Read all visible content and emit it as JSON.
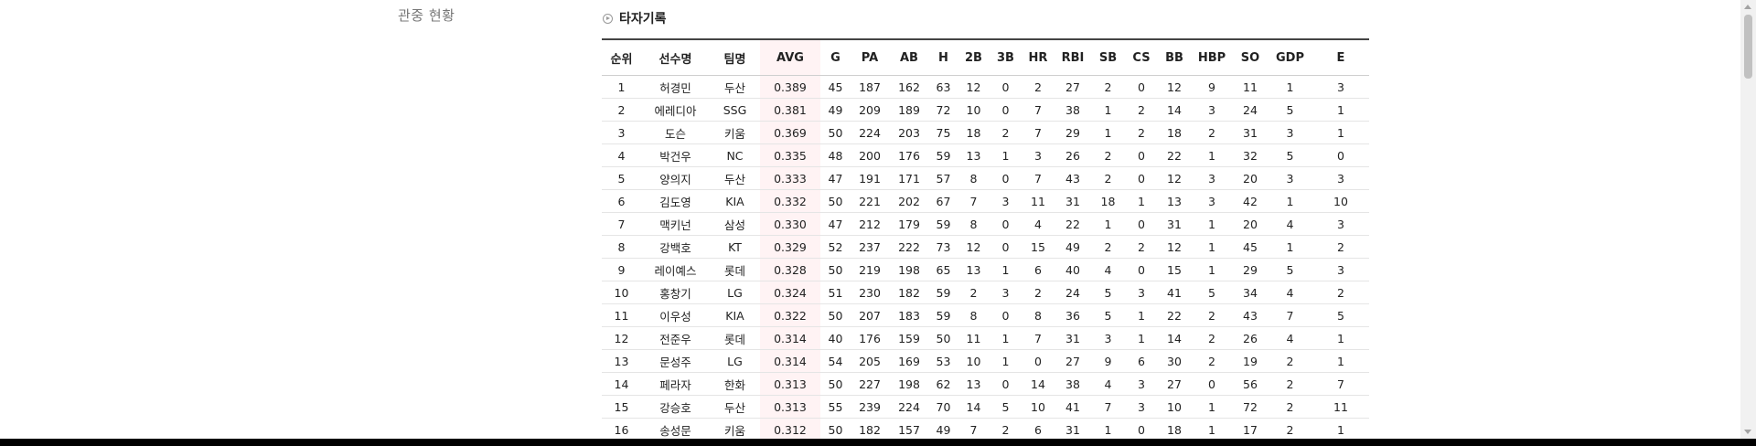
{
  "sidebar": {
    "label": "관중 현황"
  },
  "section": {
    "title": "타자기록",
    "icon": "circle-arrow-icon"
  },
  "table": {
    "columns": [
      "순위",
      "선수명",
      "팀명",
      "AVG",
      "G",
      "PA",
      "AB",
      "H",
      "2B",
      "3B",
      "HR",
      "RBI",
      "SB",
      "CS",
      "BB",
      "HBP",
      "SO",
      "GDP",
      "E"
    ],
    "highlight_column": "AVG",
    "highlight_color": "#fff3f4",
    "rows": [
      [
        "1",
        "허경민",
        "두산",
        "0.389",
        "45",
        "187",
        "162",
        "63",
        "12",
        "0",
        "2",
        "27",
        "2",
        "0",
        "12",
        "9",
        "11",
        "1",
        "3"
      ],
      [
        "2",
        "에레디아",
        "SSG",
        "0.381",
        "49",
        "209",
        "189",
        "72",
        "10",
        "0",
        "7",
        "38",
        "1",
        "2",
        "14",
        "3",
        "24",
        "5",
        "1"
      ],
      [
        "3",
        "도슨",
        "키움",
        "0.369",
        "50",
        "224",
        "203",
        "75",
        "18",
        "2",
        "7",
        "29",
        "1",
        "2",
        "18",
        "2",
        "31",
        "3",
        "1"
      ],
      [
        "4",
        "박건우",
        "NC",
        "0.335",
        "48",
        "200",
        "176",
        "59",
        "13",
        "1",
        "3",
        "26",
        "2",
        "0",
        "22",
        "1",
        "32",
        "5",
        "0"
      ],
      [
        "5",
        "양의지",
        "두산",
        "0.333",
        "47",
        "191",
        "171",
        "57",
        "8",
        "0",
        "7",
        "43",
        "2",
        "0",
        "12",
        "3",
        "20",
        "3",
        "3"
      ],
      [
        "6",
        "김도영",
        "KIA",
        "0.332",
        "50",
        "221",
        "202",
        "67",
        "7",
        "3",
        "11",
        "31",
        "18",
        "1",
        "13",
        "3",
        "42",
        "1",
        "10"
      ],
      [
        "7",
        "맥키넌",
        "삼성",
        "0.330",
        "47",
        "212",
        "179",
        "59",
        "8",
        "0",
        "4",
        "22",
        "1",
        "0",
        "31",
        "1",
        "20",
        "4",
        "3"
      ],
      [
        "8",
        "강백호",
        "KT",
        "0.329",
        "52",
        "237",
        "222",
        "73",
        "12",
        "0",
        "15",
        "49",
        "2",
        "2",
        "12",
        "1",
        "45",
        "1",
        "2"
      ],
      [
        "9",
        "레이예스",
        "롯데",
        "0.328",
        "50",
        "219",
        "198",
        "65",
        "13",
        "1",
        "6",
        "40",
        "4",
        "0",
        "15",
        "1",
        "29",
        "5",
        "3"
      ],
      [
        "10",
        "홍창기",
        "LG",
        "0.324",
        "51",
        "230",
        "182",
        "59",
        "2",
        "3",
        "2",
        "24",
        "5",
        "3",
        "41",
        "5",
        "34",
        "4",
        "2"
      ],
      [
        "11",
        "이우성",
        "KIA",
        "0.322",
        "50",
        "207",
        "183",
        "59",
        "8",
        "0",
        "8",
        "36",
        "5",
        "1",
        "22",
        "2",
        "43",
        "7",
        "5"
      ],
      [
        "12",
        "전준우",
        "롯데",
        "0.314",
        "40",
        "176",
        "159",
        "50",
        "11",
        "1",
        "7",
        "31",
        "3",
        "1",
        "14",
        "2",
        "26",
        "4",
        "1"
      ],
      [
        "13",
        "문성주",
        "LG",
        "0.314",
        "54",
        "205",
        "169",
        "53",
        "10",
        "1",
        "0",
        "27",
        "9",
        "6",
        "30",
        "2",
        "19",
        "2",
        "1"
      ],
      [
        "14",
        "페라자",
        "한화",
        "0.313",
        "50",
        "227",
        "198",
        "62",
        "13",
        "0",
        "14",
        "38",
        "4",
        "3",
        "27",
        "0",
        "56",
        "2",
        "7"
      ],
      [
        "15",
        "강승호",
        "두산",
        "0.313",
        "55",
        "239",
        "224",
        "70",
        "14",
        "5",
        "10",
        "41",
        "7",
        "3",
        "10",
        "1",
        "72",
        "2",
        "11"
      ],
      [
        "16",
        "송성문",
        "키움",
        "0.312",
        "50",
        "182",
        "157",
        "49",
        "7",
        "2",
        "6",
        "31",
        "1",
        "0",
        "18",
        "1",
        "17",
        "2",
        "1"
      ]
    ]
  }
}
